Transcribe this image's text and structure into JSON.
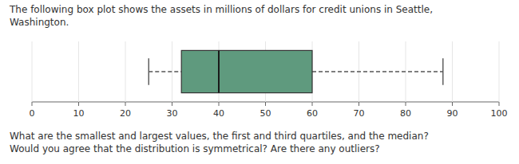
{
  "chart_data": {
    "type": "box",
    "title": "The following box plot shows the assets in millions of dollars for credit unions in Seattle,\nWashington.",
    "annotation": "What are the smallest and largest values, the first and third quartiles, and the median?\nWould you agree that the distribution is symmetrical? Are there any outliers?",
    "box": {
      "min": 25,
      "q1": 32,
      "median": 40,
      "q3": 60,
      "max": 88
    },
    "color": "#5f9a7e",
    "xlim": [
      0,
      100
    ],
    "xticks": [
      0,
      10,
      20,
      30,
      40,
      50,
      60,
      70,
      80,
      90,
      100
    ]
  }
}
